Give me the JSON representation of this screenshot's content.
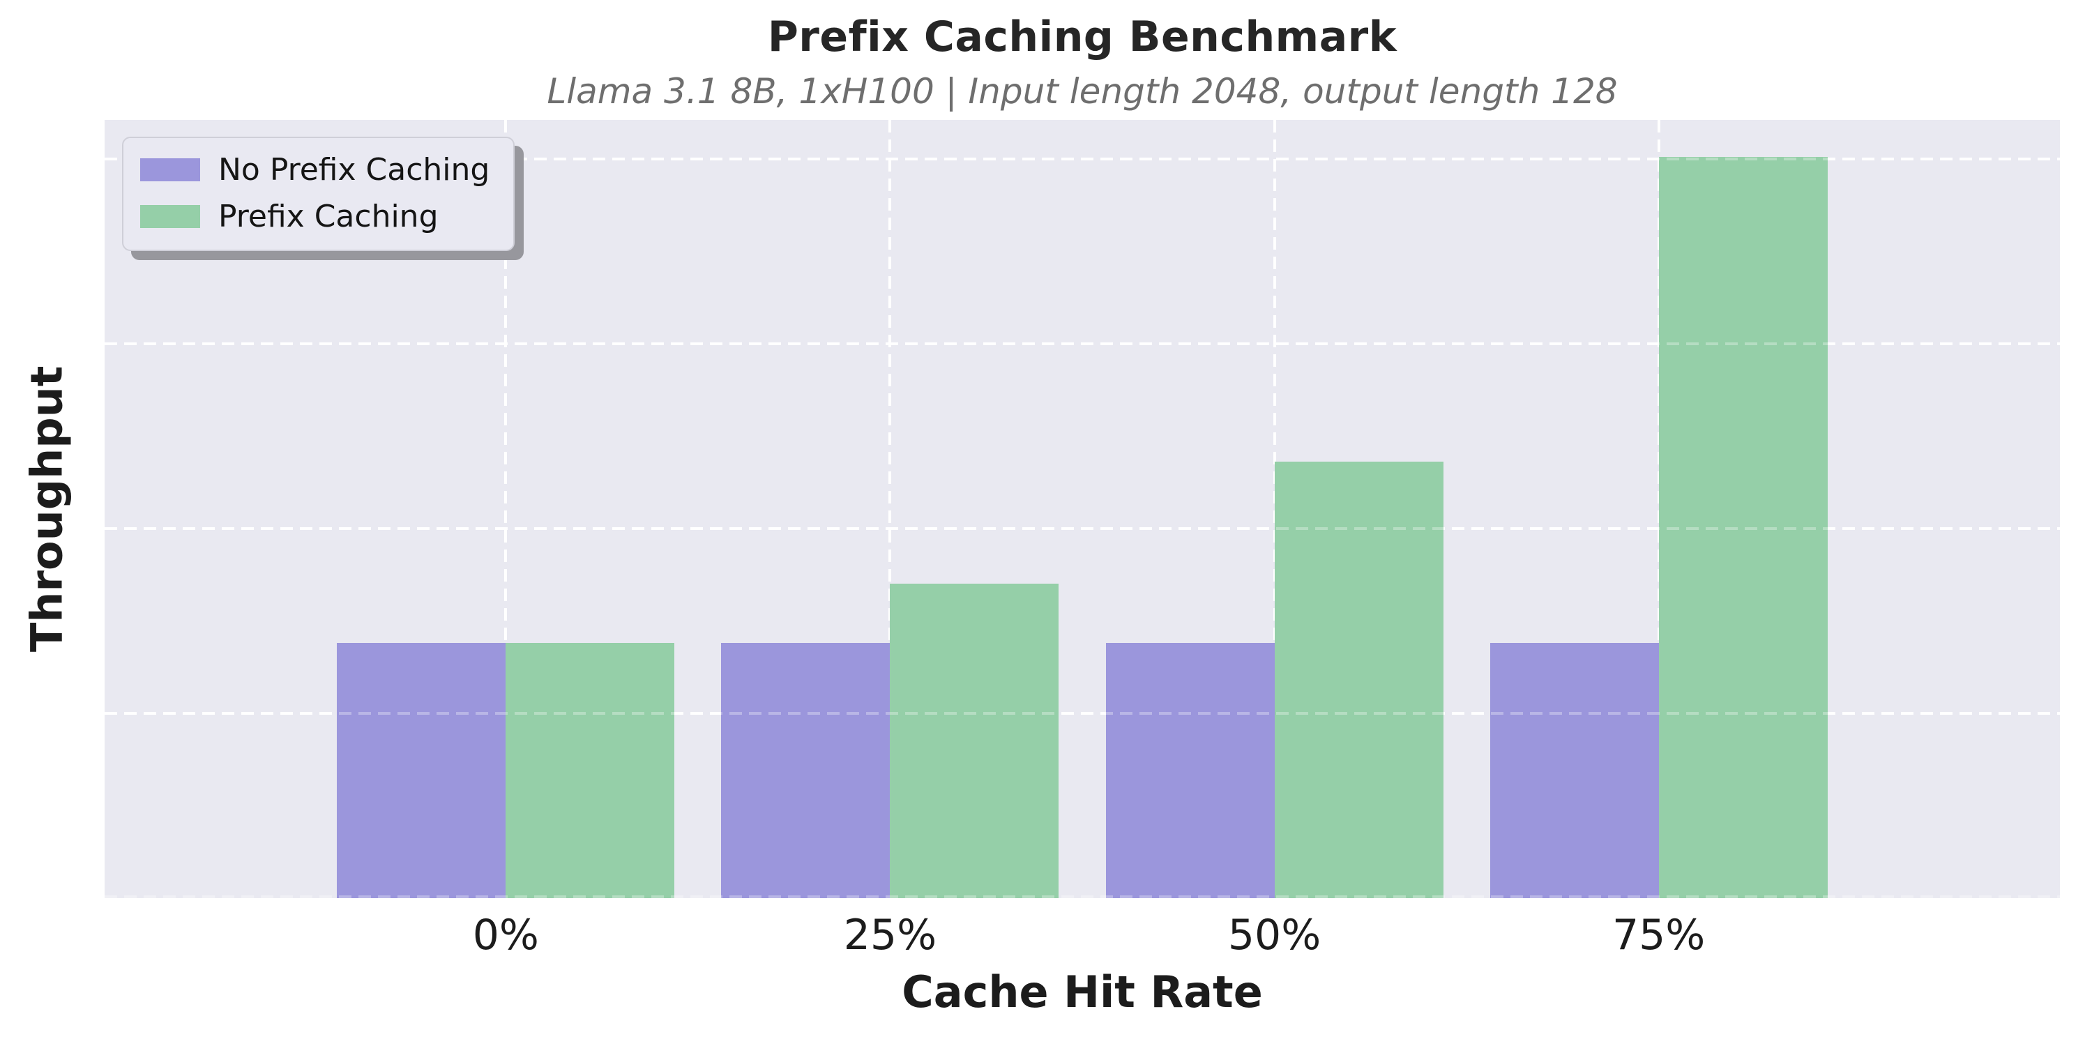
{
  "chart_data": {
    "type": "bar",
    "title": "Prefix Caching Benchmark",
    "subtitle": "Llama 3.1 8B, 1xH100 | Input length 2048, output length 128",
    "xlabel": "Cache Hit Rate",
    "ylabel": "Throughput",
    "categories": [
      "0%",
      "25%",
      "50%",
      "75%"
    ],
    "series": [
      {
        "name": "No Prefix Caching",
        "color": "#9b96dc",
        "values": [
          1.38,
          1.38,
          1.38,
          1.38
        ]
      },
      {
        "name": "Prefix Caching",
        "color": "#95cfa8",
        "values": [
          1.38,
          1.7,
          2.36,
          4.01
        ]
      }
    ],
    "ylim": [
      0,
      4.21
    ],
    "ytick_interval": 1,
    "y_tick_labels_visible": false,
    "grid": "white dashed gridlines on light lavender plot background",
    "legend_position": "upper-left",
    "colors": {
      "no_prefix_bar": "#9b96dc",
      "prefix_bar": "#95cfa8",
      "plot_background": "#e9e9f1",
      "gridline": "#ffffff",
      "title_text": "#262626",
      "subtitle_text": "#6e6e6e"
    }
  }
}
